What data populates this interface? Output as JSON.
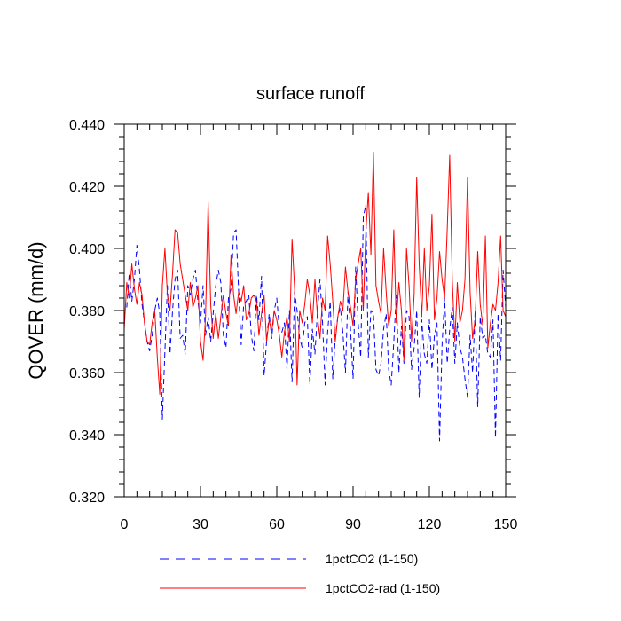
{
  "chart_data": {
    "type": "line",
    "title": "surface runoff",
    "xlabel": "",
    "ylabel": "QOVER  (mm/d)",
    "xlim": [
      0,
      150
    ],
    "ylim": [
      0.32,
      0.44
    ],
    "x_ticks": [
      0,
      30,
      60,
      90,
      120,
      150
    ],
    "x_tick_labels": [
      "0",
      "30",
      "60",
      "90",
      "120",
      "150"
    ],
    "y_ticks": [
      0.32,
      0.34,
      0.36,
      0.38,
      0.4,
      0.42,
      0.44
    ],
    "y_tick_labels": [
      "0.320",
      "0.340",
      "0.360",
      "0.380",
      "0.400",
      "0.420",
      "0.440"
    ],
    "grid": false,
    "legend_position": "bottom",
    "series": [
      {
        "name": "1pctCO2 (1-150)",
        "color": "#0000ff",
        "dash": "dashed",
        "x_start": 1,
        "values": [
          0.381,
          0.392,
          0.383,
          0.39,
          0.401,
          0.393,
          0.382,
          0.376,
          0.37,
          0.367,
          0.372,
          0.38,
          0.384,
          0.379,
          0.345,
          0.367,
          0.388,
          0.366,
          0.38,
          0.39,
          0.393,
          0.371,
          0.372,
          0.366,
          0.388,
          0.385,
          0.39,
          0.393,
          0.383,
          0.376,
          0.388,
          0.372,
          0.378,
          0.37,
          0.379,
          0.388,
          0.393,
          0.389,
          0.372,
          0.368,
          0.384,
          0.387,
          0.405,
          0.406,
          0.386,
          0.369,
          0.382,
          0.383,
          0.385,
          0.372,
          0.367,
          0.385,
          0.377,
          0.391,
          0.359,
          0.37,
          0.379,
          0.371,
          0.38,
          0.384,
          0.374,
          0.373,
          0.376,
          0.361,
          0.38,
          0.357,
          0.386,
          0.38,
          0.371,
          0.368,
          0.376,
          0.378,
          0.356,
          0.374,
          0.366,
          0.38,
          0.39,
          0.376,
          0.356,
          0.373,
          0.383,
          0.358,
          0.371,
          0.378,
          0.381,
          0.373,
          0.36,
          0.386,
          0.374,
          0.358,
          0.394,
          0.376,
          0.365,
          0.41,
          0.414,
          0.365,
          0.38,
          0.379,
          0.361,
          0.359,
          0.363,
          0.374,
          0.379,
          0.361,
          0.356,
          0.37,
          0.385,
          0.36,
          0.375,
          0.363,
          0.38,
          0.378,
          0.361,
          0.368,
          0.38,
          0.352,
          0.377,
          0.366,
          0.363,
          0.377,
          0.361,
          0.372,
          0.376,
          0.338,
          0.369,
          0.384,
          0.363,
          0.374,
          0.381,
          0.363,
          0.376,
          0.368,
          0.365,
          0.358,
          0.352,
          0.372,
          0.36,
          0.38,
          0.349,
          0.378,
          0.371,
          0.372,
          0.366,
          0.365,
          0.377,
          0.339,
          0.379,
          0.364,
          0.393,
          0.381
        ]
      },
      {
        "name": "1pctCO2-rad (1-150)",
        "color": "#ff0000",
        "dash": "solid",
        "x_start": 0,
        "values": [
          0.374,
          0.389,
          0.384,
          0.395,
          0.387,
          0.382,
          0.389,
          0.385,
          0.376,
          0.37,
          0.369,
          0.376,
          0.38,
          0.365,
          0.353,
          0.388,
          0.4,
          0.385,
          0.38,
          0.392,
          0.406,
          0.405,
          0.395,
          0.39,
          0.385,
          0.38,
          0.389,
          0.381,
          0.384,
          0.388,
          0.37,
          0.364,
          0.378,
          0.415,
          0.382,
          0.371,
          0.379,
          0.371,
          0.378,
          0.385,
          0.379,
          0.375,
          0.398,
          0.385,
          0.379,
          0.386,
          0.383,
          0.388,
          0.377,
          0.379,
          0.384,
          0.385,
          0.383,
          0.372,
          0.379,
          0.385,
          0.37,
          0.377,
          0.373,
          0.38,
          0.377,
          0.372,
          0.365,
          0.373,
          0.378,
          0.37,
          0.403,
          0.387,
          0.356,
          0.38,
          0.376,
          0.382,
          0.39,
          0.385,
          0.376,
          0.39,
          0.378,
          0.371,
          0.384,
          0.38,
          0.404,
          0.395,
          0.383,
          0.37,
          0.378,
          0.383,
          0.38,
          0.394,
          0.386,
          0.381,
          0.375,
          0.39,
          0.395,
          0.4,
          0.38,
          0.405,
          0.418,
          0.398,
          0.431,
          0.388,
          0.383,
          0.379,
          0.4,
          0.386,
          0.375,
          0.38,
          0.406,
          0.376,
          0.389,
          0.38,
          0.364,
          0.4,
          0.388,
          0.37,
          0.385,
          0.423,
          0.395,
          0.378,
          0.4,
          0.38,
          0.388,
          0.411,
          0.377,
          0.384,
          0.399,
          0.39,
          0.384,
          0.406,
          0.43,
          0.39,
          0.37,
          0.389,
          0.376,
          0.38,
          0.39,
          0.423,
          0.386,
          0.371,
          0.377,
          0.399,
          0.382,
          0.375,
          0.404,
          0.368,
          0.376,
          0.382,
          0.38,
          0.389,
          0.404,
          0.38,
          0.378
        ]
      }
    ]
  }
}
